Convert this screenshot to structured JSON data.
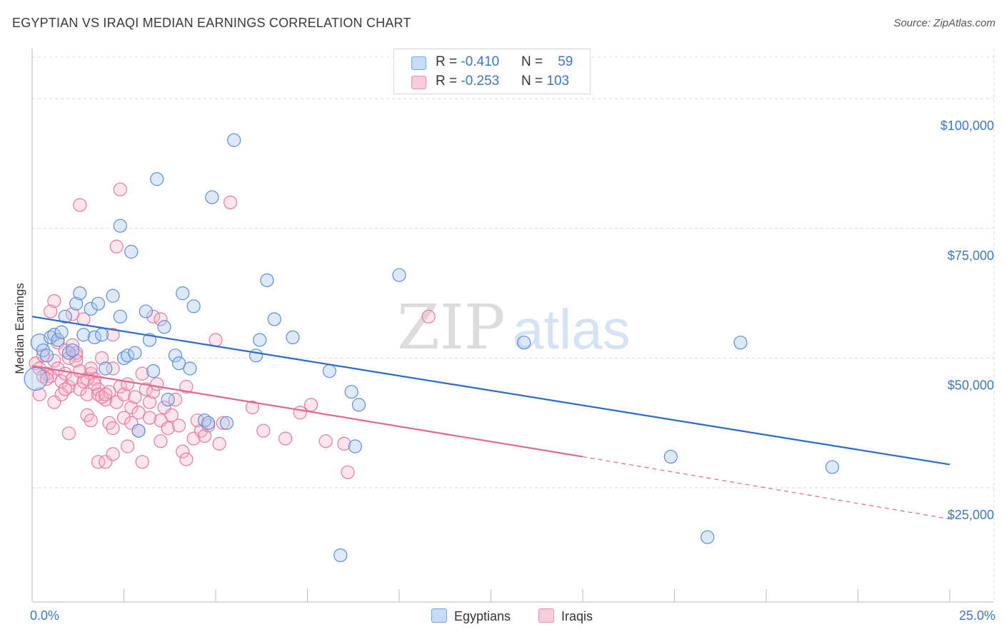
{
  "title": "EGYPTIAN VS IRAQI MEDIAN EARNINGS CORRELATION CHART",
  "source": "Source: ZipAtlas.com",
  "watermark": {
    "zip": "ZIP",
    "atlas": "atlas"
  },
  "legend": {
    "egyptians": {
      "r_label": "R = ",
      "r_value": "-0.410",
      "n_label": "N = ",
      "n_value": "59"
    },
    "iraqis": {
      "r_label": "R = ",
      "r_value": "-0.253",
      "n_label": "N = ",
      "n_value": "103"
    }
  },
  "colors": {
    "egyptians_fill": "#a9c8f0",
    "egyptians_stroke": "#5b8fd6",
    "egyptians_line": "#2a6cc8",
    "iraqis_fill": "#f5b5cb",
    "iraqis_stroke": "#e8799f",
    "iraqis_line": "#e06990",
    "tick_label": "#3b78c4",
    "grid": "#d8d8d8"
  },
  "chart_data": {
    "type": "scatter",
    "title": "EGYPTIAN VS IRAQI MEDIAN EARNINGS CORRELATION CHART",
    "xlabel": "",
    "ylabel": "Median Earnings",
    "xlim": [
      0,
      25
    ],
    "ylim": [
      3000,
      108000
    ],
    "x_tick_labels": [
      "0.0%",
      "25.0%"
    ],
    "y_ticks": [
      {
        "value": 25000,
        "label": "$25,000"
      },
      {
        "value": 50000,
        "label": "$50,000"
      },
      {
        "value": 75000,
        "label": "$75,000"
      },
      {
        "value": 100000,
        "label": "$100,000"
      }
    ],
    "series": [
      {
        "name": "Egyptians",
        "trend": {
          "x0": 0,
          "y0": 58000,
          "x1": 25,
          "y1": 29500
        },
        "points": [
          [
            0.2,
            53000
          ],
          [
            0.3,
            51500
          ],
          [
            0.4,
            50500
          ],
          [
            0.5,
            54000
          ],
          [
            0.6,
            54500
          ],
          [
            0.7,
            53500
          ],
          [
            0.8,
            55000
          ],
          [
            0.9,
            58000
          ],
          [
            1.0,
            51000
          ],
          [
            1.1,
            51500
          ],
          [
            1.2,
            60500
          ],
          [
            1.3,
            62500
          ],
          [
            1.4,
            54500
          ],
          [
            1.6,
            59500
          ],
          [
            1.7,
            54000
          ],
          [
            1.8,
            60500
          ],
          [
            1.9,
            54500
          ],
          [
            2.0,
            48000
          ],
          [
            2.2,
            62000
          ],
          [
            2.4,
            58000
          ],
          [
            2.5,
            50000
          ],
          [
            2.6,
            50500
          ],
          [
            2.7,
            70500
          ],
          [
            2.8,
            51000
          ],
          [
            2.9,
            36000
          ],
          [
            3.1,
            59000
          ],
          [
            3.2,
            53500
          ],
          [
            3.3,
            47500
          ],
          [
            3.4,
            84500
          ],
          [
            3.6,
            56000
          ],
          [
            3.7,
            42000
          ],
          [
            3.9,
            50500
          ],
          [
            4.0,
            49000
          ],
          [
            4.1,
            62500
          ],
          [
            4.3,
            48000
          ],
          [
            4.4,
            60000
          ],
          [
            4.7,
            38000
          ],
          [
            4.8,
            37500
          ],
          [
            4.9,
            81000
          ],
          [
            5.3,
            37500
          ],
          [
            5.5,
            92000
          ],
          [
            6.1,
            50500
          ],
          [
            6.2,
            53500
          ],
          [
            6.4,
            65000
          ],
          [
            6.6,
            57500
          ],
          [
            7.1,
            54000
          ],
          [
            8.1,
            47500
          ],
          [
            8.4,
            12000
          ],
          [
            8.7,
            43500
          ],
          [
            8.8,
            33000
          ],
          [
            8.9,
            41000
          ],
          [
            10.0,
            66000
          ],
          [
            2.4,
            75500
          ],
          [
            13.4,
            53000
          ],
          [
            17.4,
            31000
          ],
          [
            18.4,
            15500
          ],
          [
            19.3,
            53000
          ],
          [
            21.8,
            29000
          ],
          [
            0.1,
            46000
          ]
        ]
      },
      {
        "name": "Iraqis",
        "trend": {
          "x0": 0,
          "y0": 48500,
          "x1": 15,
          "y1": 31000,
          "dashed_to_x": 25,
          "dashed_to_y": 19000
        },
        "points": [
          [
            0.1,
            49000
          ],
          [
            0.2,
            48000
          ],
          [
            0.3,
            50500
          ],
          [
            0.4,
            47000
          ],
          [
            0.5,
            46500
          ],
          [
            0.6,
            49500
          ],
          [
            0.7,
            48000
          ],
          [
            0.8,
            45500
          ],
          [
            0.9,
            47000
          ],
          [
            1.0,
            44500
          ],
          [
            1.1,
            46000
          ],
          [
            1.2,
            50500
          ],
          [
            1.3,
            44000
          ],
          [
            1.4,
            45500
          ],
          [
            1.5,
            43000
          ],
          [
            1.6,
            47000
          ],
          [
            1.7,
            46000
          ],
          [
            1.8,
            44000
          ],
          [
            1.9,
            50000
          ],
          [
            2.0,
            42000
          ],
          [
            2.1,
            43500
          ],
          [
            2.2,
            48000
          ],
          [
            2.3,
            41500
          ],
          [
            2.4,
            44500
          ],
          [
            2.5,
            43000
          ],
          [
            2.6,
            45000
          ],
          [
            2.7,
            40500
          ],
          [
            2.8,
            42500
          ],
          [
            2.9,
            39500
          ],
          [
            3.0,
            47000
          ],
          [
            3.1,
            44000
          ],
          [
            3.2,
            41500
          ],
          [
            3.3,
            43500
          ],
          [
            3.4,
            45000
          ],
          [
            3.5,
            38000
          ],
          [
            3.6,
            40500
          ],
          [
            3.7,
            36500
          ],
          [
            3.8,
            39000
          ],
          [
            3.9,
            42000
          ],
          [
            4.0,
            37000
          ],
          [
            4.1,
            32000
          ],
          [
            4.2,
            44500
          ],
          [
            4.4,
            34500
          ],
          [
            4.5,
            38000
          ],
          [
            4.6,
            36000
          ],
          [
            4.7,
            35000
          ],
          [
            4.8,
            37000
          ],
          [
            5.0,
            53500
          ],
          [
            5.2,
            37500
          ],
          [
            5.4,
            80000
          ],
          [
            6.0,
            40500
          ],
          [
            6.9,
            34500
          ],
          [
            7.3,
            39500
          ],
          [
            7.6,
            41000
          ],
          [
            8.0,
            34000
          ],
          [
            8.5,
            33500
          ],
          [
            8.6,
            28000
          ],
          [
            10.8,
            58000
          ],
          [
            1.3,
            79500
          ],
          [
            2.4,
            82500
          ],
          [
            2.3,
            71500
          ],
          [
            1.1,
            58500
          ],
          [
            0.6,
            61000
          ],
          [
            0.5,
            59000
          ],
          [
            1.4,
            57500
          ],
          [
            2.2,
            54500
          ],
          [
            3.3,
            58000
          ],
          [
            3.5,
            57500
          ],
          [
            0.3,
            46500
          ],
          [
            0.4,
            46000
          ],
          [
            0.7,
            53000
          ],
          [
            0.9,
            51500
          ],
          [
            1.0,
            50000
          ],
          [
            1.1,
            52500
          ],
          [
            1.2,
            51000
          ],
          [
            1.5,
            46000
          ],
          [
            1.6,
            48000
          ],
          [
            1.7,
            45000
          ],
          [
            1.8,
            43000
          ],
          [
            1.9,
            42500
          ],
          [
            2.0,
            43000
          ],
          [
            2.1,
            37500
          ],
          [
            2.2,
            36500
          ],
          [
            2.5,
            38500
          ],
          [
            2.6,
            33000
          ],
          [
            2.7,
            37500
          ],
          [
            2.9,
            36000
          ],
          [
            3.2,
            38500
          ],
          [
            3.5,
            34000
          ],
          [
            1.0,
            35500
          ],
          [
            1.5,
            39000
          ],
          [
            1.8,
            30000
          ],
          [
            2.0,
            30000
          ],
          [
            2.2,
            31500
          ],
          [
            0.8,
            43000
          ],
          [
            0.9,
            44000
          ],
          [
            1.2,
            49500
          ],
          [
            1.3,
            47500
          ],
          [
            1.6,
            38000
          ],
          [
            3.0,
            30000
          ],
          [
            0.2,
            43000
          ],
          [
            0.6,
            41500
          ],
          [
            4.2,
            30500
          ],
          [
            5.1,
            33500
          ],
          [
            6.3,
            36000
          ]
        ]
      }
    ]
  },
  "bottom_legend": {
    "egyptians": "Egyptians",
    "iraqis": "Iraqis"
  }
}
